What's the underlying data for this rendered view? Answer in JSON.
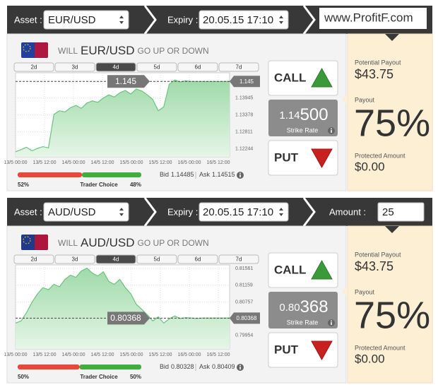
{
  "watermark": "www.ProfitF.com",
  "panels": [
    {
      "asset_label": "Asset :",
      "asset": "EUR/USD",
      "expiry_label": "Expiry :",
      "expiry": "20.05.15 17:10",
      "question": {
        "will": "WILL",
        "pair": "EUR/USD",
        "rest": "GO UP OR DOWN"
      },
      "periods": [
        "2d",
        "3d",
        "4d",
        "5d",
        "6d",
        "7d"
      ],
      "active_period": 2,
      "chart": {
        "ylim": [
          1.1198,
          1.1479
        ],
        "yticks": [
          1.13945,
          1.13378,
          1.12811,
          1.12244
        ],
        "x_labels": [
          "13/5 00:00",
          "13/5 12:00",
          "14/5 00:00",
          "14/5 12:00",
          "15/5 00:00",
          "15/5 12:00",
          "16/5 00:00",
          "16/5 12:00"
        ],
        "values": [
          1.1215,
          1.1222,
          1.123,
          1.1218,
          1.1226,
          1.1232,
          1.1228,
          1.134,
          1.1352,
          1.1348,
          1.1362,
          1.137,
          1.136,
          1.1378,
          1.1385,
          1.138,
          1.1395,
          1.1405,
          1.1398,
          1.1412,
          1.142,
          1.1408,
          1.1425,
          1.1418,
          1.1405,
          1.139,
          1.1352,
          1.1365,
          1.144,
          1.1455,
          1.1448,
          1.1452,
          1.145,
          1.145,
          1.145,
          1.145,
          1.145,
          1.145,
          1.145,
          1.145
        ],
        "current": 1.145
      },
      "sentiment": {
        "left": {
          "value": 52,
          "label": "52%"
        },
        "label": "Trader Choice",
        "right": {
          "value": 48,
          "label": "48%"
        }
      },
      "bid_label": "Bid",
      "bid": "1.14485",
      "ask_label": "Ask",
      "ask": "1.14515",
      "call": "CALL",
      "strike_small": "1.14",
      "strike_big": "500",
      "strike_label": "Strike Rate",
      "put": "PUT",
      "potential_payout_label": "Potential Payout",
      "potential_payout": "$43.75",
      "payout_label": "Payout",
      "payout": "75%",
      "protected_label": "Protected Amount",
      "protected": "$0.00"
    },
    {
      "asset_label": "Asset :",
      "asset": "AUD/USD",
      "expiry_label": "Expiry :",
      "expiry": "20.05.15 17:10",
      "amount_label": "Amount :",
      "amount": "25",
      "question": {
        "will": "WILL",
        "pair": "AUD/USD",
        "rest": "GO UP OR DOWN"
      },
      "periods": [
        "2d",
        "3d",
        "4d",
        "5d",
        "6d",
        "7d"
      ],
      "active_period": 2,
      "chart": {
        "ylim": [
          0.79628,
          0.81646
        ],
        "yticks": [
          0.81561,
          0.81159,
          0.80757,
          0.79954
        ],
        "x_labels": [
          "13/5 00:00",
          "13/5 12:00",
          "14/5 00:00",
          "14/5 12:00",
          "15/5 00:00",
          "15/5 12:00",
          "16/5 00:00",
          "16/5 12:00"
        ],
        "values": [
          0.8025,
          0.803,
          0.805,
          0.8075,
          0.8095,
          0.811,
          0.8105,
          0.8118,
          0.8112,
          0.813,
          0.814,
          0.8135,
          0.815,
          0.8157,
          0.8145,
          0.8138,
          0.8148,
          0.8125,
          0.8118,
          0.813,
          0.811,
          0.8095,
          0.807,
          0.8058,
          0.8045,
          0.803,
          0.804,
          0.8025,
          0.8035,
          0.8042,
          0.8036,
          0.8038,
          0.8037,
          0.8036,
          0.8037,
          0.8037,
          0.8037,
          0.8037,
          0.8037,
          0.8037
        ],
        "current": 0.80368
      },
      "sentiment": {
        "left": {
          "value": 50,
          "label": "50%"
        },
        "label": "Trader Choice",
        "right": {
          "value": 50,
          "label": "50%"
        }
      },
      "bid_label": "Bid",
      "bid": "0.80328",
      "ask_label": "Ask",
      "ask": "0.80409",
      "call": "CALL",
      "strike_small": "0.80",
      "strike_big": "368",
      "strike_label": "Strike Rate",
      "put": "PUT",
      "potential_payout_label": "Potential Payout",
      "potential_payout": "$43.75",
      "payout_label": "Payout",
      "payout": "75%",
      "protected_label": "Protected Amount",
      "protected": "$0.00"
    }
  ]
}
